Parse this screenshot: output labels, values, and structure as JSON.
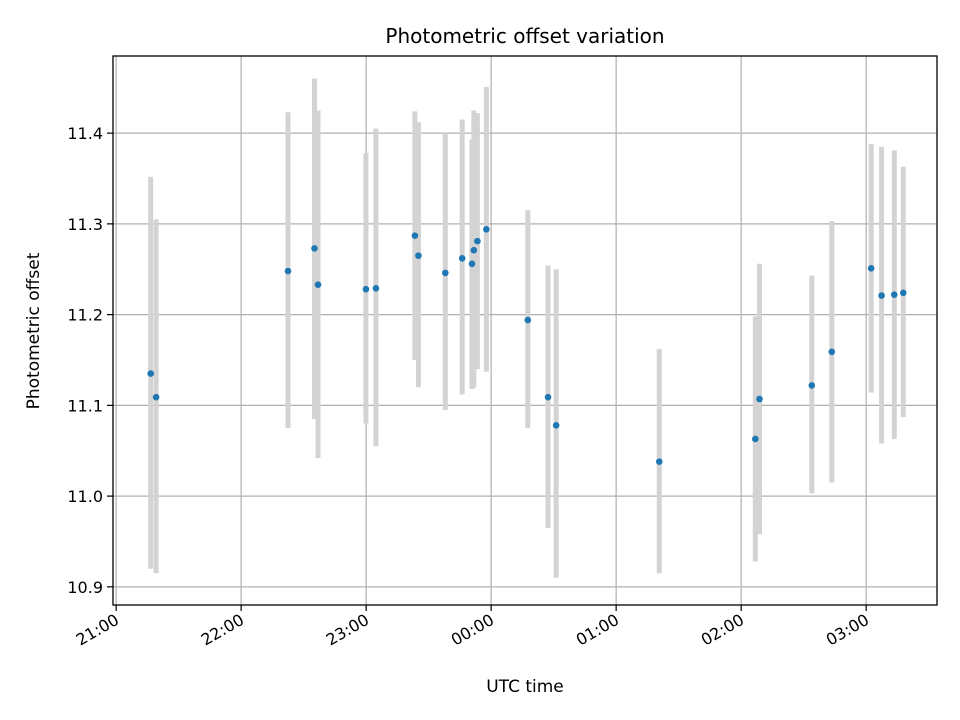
{
  "chart_data": {
    "type": "scatter",
    "title": "Photometric offset variation",
    "xlabel": "UTC time",
    "ylabel": "Photometric offset",
    "x_unit": "minutes after 21:00 UTC",
    "xlim": [
      -1.5,
      394
    ],
    "ylim": [
      10.88,
      11.485
    ],
    "x_ticks": [
      {
        "value": 0,
        "label": "21:00"
      },
      {
        "value": 60,
        "label": "22:00"
      },
      {
        "value": 120,
        "label": "23:00"
      },
      {
        "value": 180,
        "label": "00:00"
      },
      {
        "value": 240,
        "label": "01:00"
      },
      {
        "value": 300,
        "label": "02:00"
      },
      {
        "value": 360,
        "label": "03:00"
      }
    ],
    "y_ticks": [
      10.9,
      11.0,
      11.1,
      11.2,
      11.3,
      11.4
    ],
    "grid": true,
    "colors": {
      "point": "#1f77b4",
      "errorbar": "#d3d3d3",
      "grid": "#b0b0b0"
    },
    "series": [
      {
        "points": [
          {
            "x": 16.6,
            "y": 11.135,
            "low": 10.92,
            "high": 11.352
          },
          {
            "x": 19.2,
            "y": 11.109,
            "low": 10.915,
            "high": 11.305
          },
          {
            "x": 82.5,
            "y": 11.248,
            "low": 11.075,
            "high": 11.423
          },
          {
            "x": 95.2,
            "y": 11.273,
            "low": 11.085,
            "high": 11.46
          },
          {
            "x": 96.9,
            "y": 11.233,
            "low": 11.042,
            "high": 11.425
          },
          {
            "x": 119.9,
            "y": 11.228,
            "low": 11.08,
            "high": 11.378
          },
          {
            "x": 124.7,
            "y": 11.229,
            "low": 11.055,
            "high": 11.405
          },
          {
            "x": 143.4,
            "y": 11.287,
            "low": 11.15,
            "high": 11.424
          },
          {
            "x": 145.1,
            "y": 11.265,
            "low": 11.12,
            "high": 11.412
          },
          {
            "x": 158.0,
            "y": 11.246,
            "low": 11.095,
            "high": 11.4
          },
          {
            "x": 166.1,
            "y": 11.262,
            "low": 11.112,
            "high": 11.415
          },
          {
            "x": 170.8,
            "y": 11.256,
            "low": 11.118,
            "high": 11.393
          },
          {
            "x": 171.7,
            "y": 11.271,
            "low": 11.12,
            "high": 11.425
          },
          {
            "x": 173.4,
            "y": 11.281,
            "low": 11.14,
            "high": 11.422
          },
          {
            "x": 177.7,
            "y": 11.294,
            "low": 11.137,
            "high": 11.451
          },
          {
            "x": 197.6,
            "y": 11.194,
            "low": 11.075,
            "high": 11.315
          },
          {
            "x": 207.3,
            "y": 11.109,
            "low": 10.965,
            "high": 11.254
          },
          {
            "x": 211.2,
            "y": 11.078,
            "low": 10.91,
            "high": 11.25
          },
          {
            "x": 260.7,
            "y": 11.038,
            "low": 10.915,
            "high": 11.162
          },
          {
            "x": 306.8,
            "y": 11.063,
            "low": 10.928,
            "high": 11.198
          },
          {
            "x": 308.8,
            "y": 11.107,
            "low": 10.958,
            "high": 11.256
          },
          {
            "x": 333.9,
            "y": 11.122,
            "low": 11.003,
            "high": 11.243
          },
          {
            "x": 343.5,
            "y": 11.159,
            "low": 11.015,
            "high": 11.303
          },
          {
            "x": 362.4,
            "y": 11.251,
            "low": 11.114,
            "high": 11.388
          },
          {
            "x": 367.4,
            "y": 11.221,
            "low": 11.058,
            "high": 11.385
          },
          {
            "x": 373.5,
            "y": 11.222,
            "low": 11.063,
            "high": 11.381
          },
          {
            "x": 377.8,
            "y": 11.224,
            "low": 11.087,
            "high": 11.363
          }
        ]
      }
    ]
  }
}
